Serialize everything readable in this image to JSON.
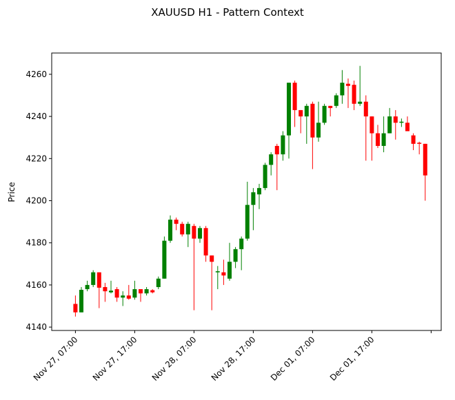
{
  "chart_data": {
    "type": "candlestick",
    "title": "XAUUSD H1 - Pattern Context",
    "ylabel": "Price",
    "up_color": "#008000",
    "down_color": "#ff0000",
    "x": [
      0,
      1,
      2,
      3,
      4,
      5,
      6,
      7,
      8,
      9,
      10,
      11,
      12,
      13,
      14,
      15,
      16,
      17,
      18,
      19,
      20,
      21,
      22,
      23,
      24,
      25,
      26,
      27,
      28,
      29,
      30,
      31,
      32,
      33,
      34,
      35,
      36,
      37,
      38,
      39,
      40,
      41,
      42,
      43,
      44,
      45,
      46,
      47,
      48,
      49,
      50,
      51,
      52,
      53,
      54,
      55,
      56,
      57,
      58,
      59
    ],
    "open": [
      4151,
      4147,
      4158,
      4160,
      4166,
      4159,
      4156.5,
      4158,
      4154,
      4155,
      4154,
      4158,
      4156,
      4157.5,
      4159,
      4163,
      4181,
      4191,
      4189,
      4184,
      4188,
      4182,
      4187,
      4174,
      4166,
      4166,
      4163,
      4171,
      4177,
      4182,
      4198,
      4203,
      4206,
      4217,
      4226,
      4222,
      4231,
      4256,
      4243,
      4240,
      4246,
      4230,
      4237,
      4245,
      4245,
      4250,
      4255.5,
      4255,
      4246,
      4247,
      4240,
      4232,
      4226,
      4232,
      4240,
      4237,
      4237,
      4231,
      4227.5,
      4227
    ],
    "high": [
      4155,
      4159,
      4162,
      4167,
      4166,
      4161,
      4162,
      4159,
      4157,
      4160,
      4162,
      4158,
      4159,
      4158,
      4164,
      4183,
      4193,
      4192,
      4190,
      4190,
      4189,
      4188,
      4188,
      4174,
      4169,
      4172,
      4180,
      4178,
      4183,
      4209,
      4206,
      4208,
      4218,
      4223,
      4227,
      4233,
      4256,
      4257,
      4243,
      4246,
      4247,
      4247,
      4246,
      4245,
      4251,
      4262,
      4258,
      4257,
      4264,
      4250,
      4240,
      4236,
      4240,
      4244,
      4243,
      4239,
      4240,
      4232,
      4228,
      4227
    ],
    "low": [
      4145,
      4147,
      4157,
      4159,
      4149,
      4152,
      4156,
      4152,
      4150,
      4153,
      4153,
      4152,
      4155,
      4156,
      4158,
      4163,
      4180,
      4186,
      4183,
      4178,
      4148,
      4180,
      4171,
      4148,
      4158,
      4160,
      4162,
      4168,
      4167,
      4181,
      4186,
      4196,
      4205,
      4212,
      4205,
      4219,
      4220,
      4235,
      4232,
      4227,
      4215,
      4228,
      4236,
      4240,
      4244,
      4246,
      4244,
      4243,
      4245,
      4219,
      4219,
      4225,
      4223,
      4232,
      4229,
      4235,
      4233,
      4224,
      4222,
      4200
    ],
    "close": [
      4147,
      4157.7,
      4160,
      4166,
      4158.7,
      4157,
      4157.3,
      4154,
      4155,
      4153.5,
      4158,
      4156,
      4158,
      4156.5,
      4163,
      4181,
      4191,
      4189,
      4184,
      4189,
      4182,
      4187,
      4174,
      4171,
      4166.5,
      4164.5,
      4171,
      4177,
      4182,
      4198,
      4204,
      4206,
      4217,
      4222,
      4222,
      4231,
      4256,
      4243,
      4240,
      4245,
      4230,
      4237,
      4245,
      4244,
      4250,
      4256,
      4254.5,
      4246,
      4247,
      4240,
      4232,
      4226,
      4232,
      4240,
      4237,
      4237.5,
      4233,
      4227,
      4227,
      4212
    ],
    "xlim": [
      -4,
      61.7
    ],
    "ylim": [
      4138.4,
      4270.1
    ],
    "xticks": [
      {
        "value": 0,
        "label": "Nov 27, 07:00"
      },
      {
        "value": 10,
        "label": "Nov 27, 17:00"
      },
      {
        "value": 20,
        "label": "Nov 28, 07:00"
      },
      {
        "value": 30,
        "label": "Nov 28, 17:00"
      },
      {
        "value": 40,
        "label": "Dec 01, 07:00"
      },
      {
        "value": 50,
        "label": "Dec 01, 17:00"
      },
      {
        "value": 60,
        "label": null
      }
    ],
    "yticks": [
      4140,
      4160,
      4180,
      4200,
      4220,
      4240,
      4260
    ]
  }
}
